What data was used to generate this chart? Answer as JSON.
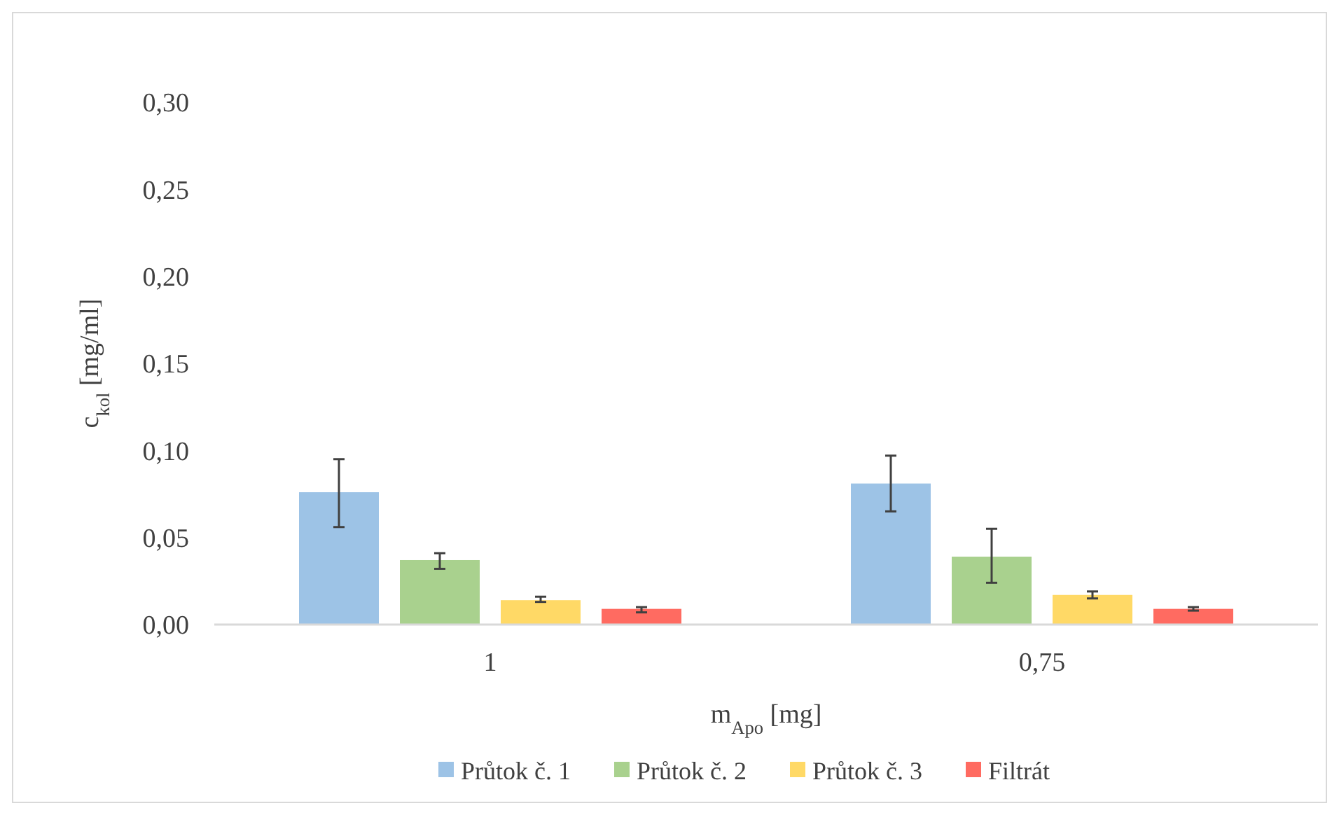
{
  "chart_data": {
    "type": "bar",
    "xlabel": "m$_{Apo}$ [mg]",
    "ylabel": "c$_{kol}$ [mg/ml]",
    "categories": [
      "1",
      "0,75"
    ],
    "series": [
      {
        "name": "Průtok č. 1",
        "color": "#9dc3e6",
        "values": [
          0.076,
          0.081
        ],
        "errors": [
          [
            0.056,
            0.095
          ],
          [
            0.065,
            0.097
          ]
        ]
      },
      {
        "name": "Průtok č. 2",
        "color": "#a9d18e",
        "values": [
          0.037,
          0.039
        ],
        "errors": [
          [
            0.032,
            0.041
          ],
          [
            0.024,
            0.055
          ]
        ]
      },
      {
        "name": "Průtok č. 3",
        "color": "#ffd966",
        "values": [
          0.014,
          0.017
        ],
        "errors": [
          [
            0.013,
            0.016
          ],
          [
            0.015,
            0.019
          ]
        ]
      },
      {
        "name": "Filtrát",
        "color": "#ff6b61",
        "values": [
          0.009,
          0.009
        ],
        "errors": [
          [
            0.007,
            0.01
          ],
          [
            0.008,
            0.01
          ]
        ]
      }
    ],
    "ylim": [
      0,
      0.3
    ],
    "yticks": [
      {
        "value": 0,
        "label": "0,00"
      },
      {
        "value": 0.05,
        "label": "0,05"
      },
      {
        "value": 0.1,
        "label": "0,10"
      },
      {
        "value": 0.15,
        "label": "0,15"
      },
      {
        "value": 0.2,
        "label": "0,20"
      },
      {
        "value": 0.25,
        "label": "0,25"
      },
      {
        "value": 0.3,
        "label": "0,30"
      }
    ],
    "grid": false,
    "legend": "bottom"
  }
}
